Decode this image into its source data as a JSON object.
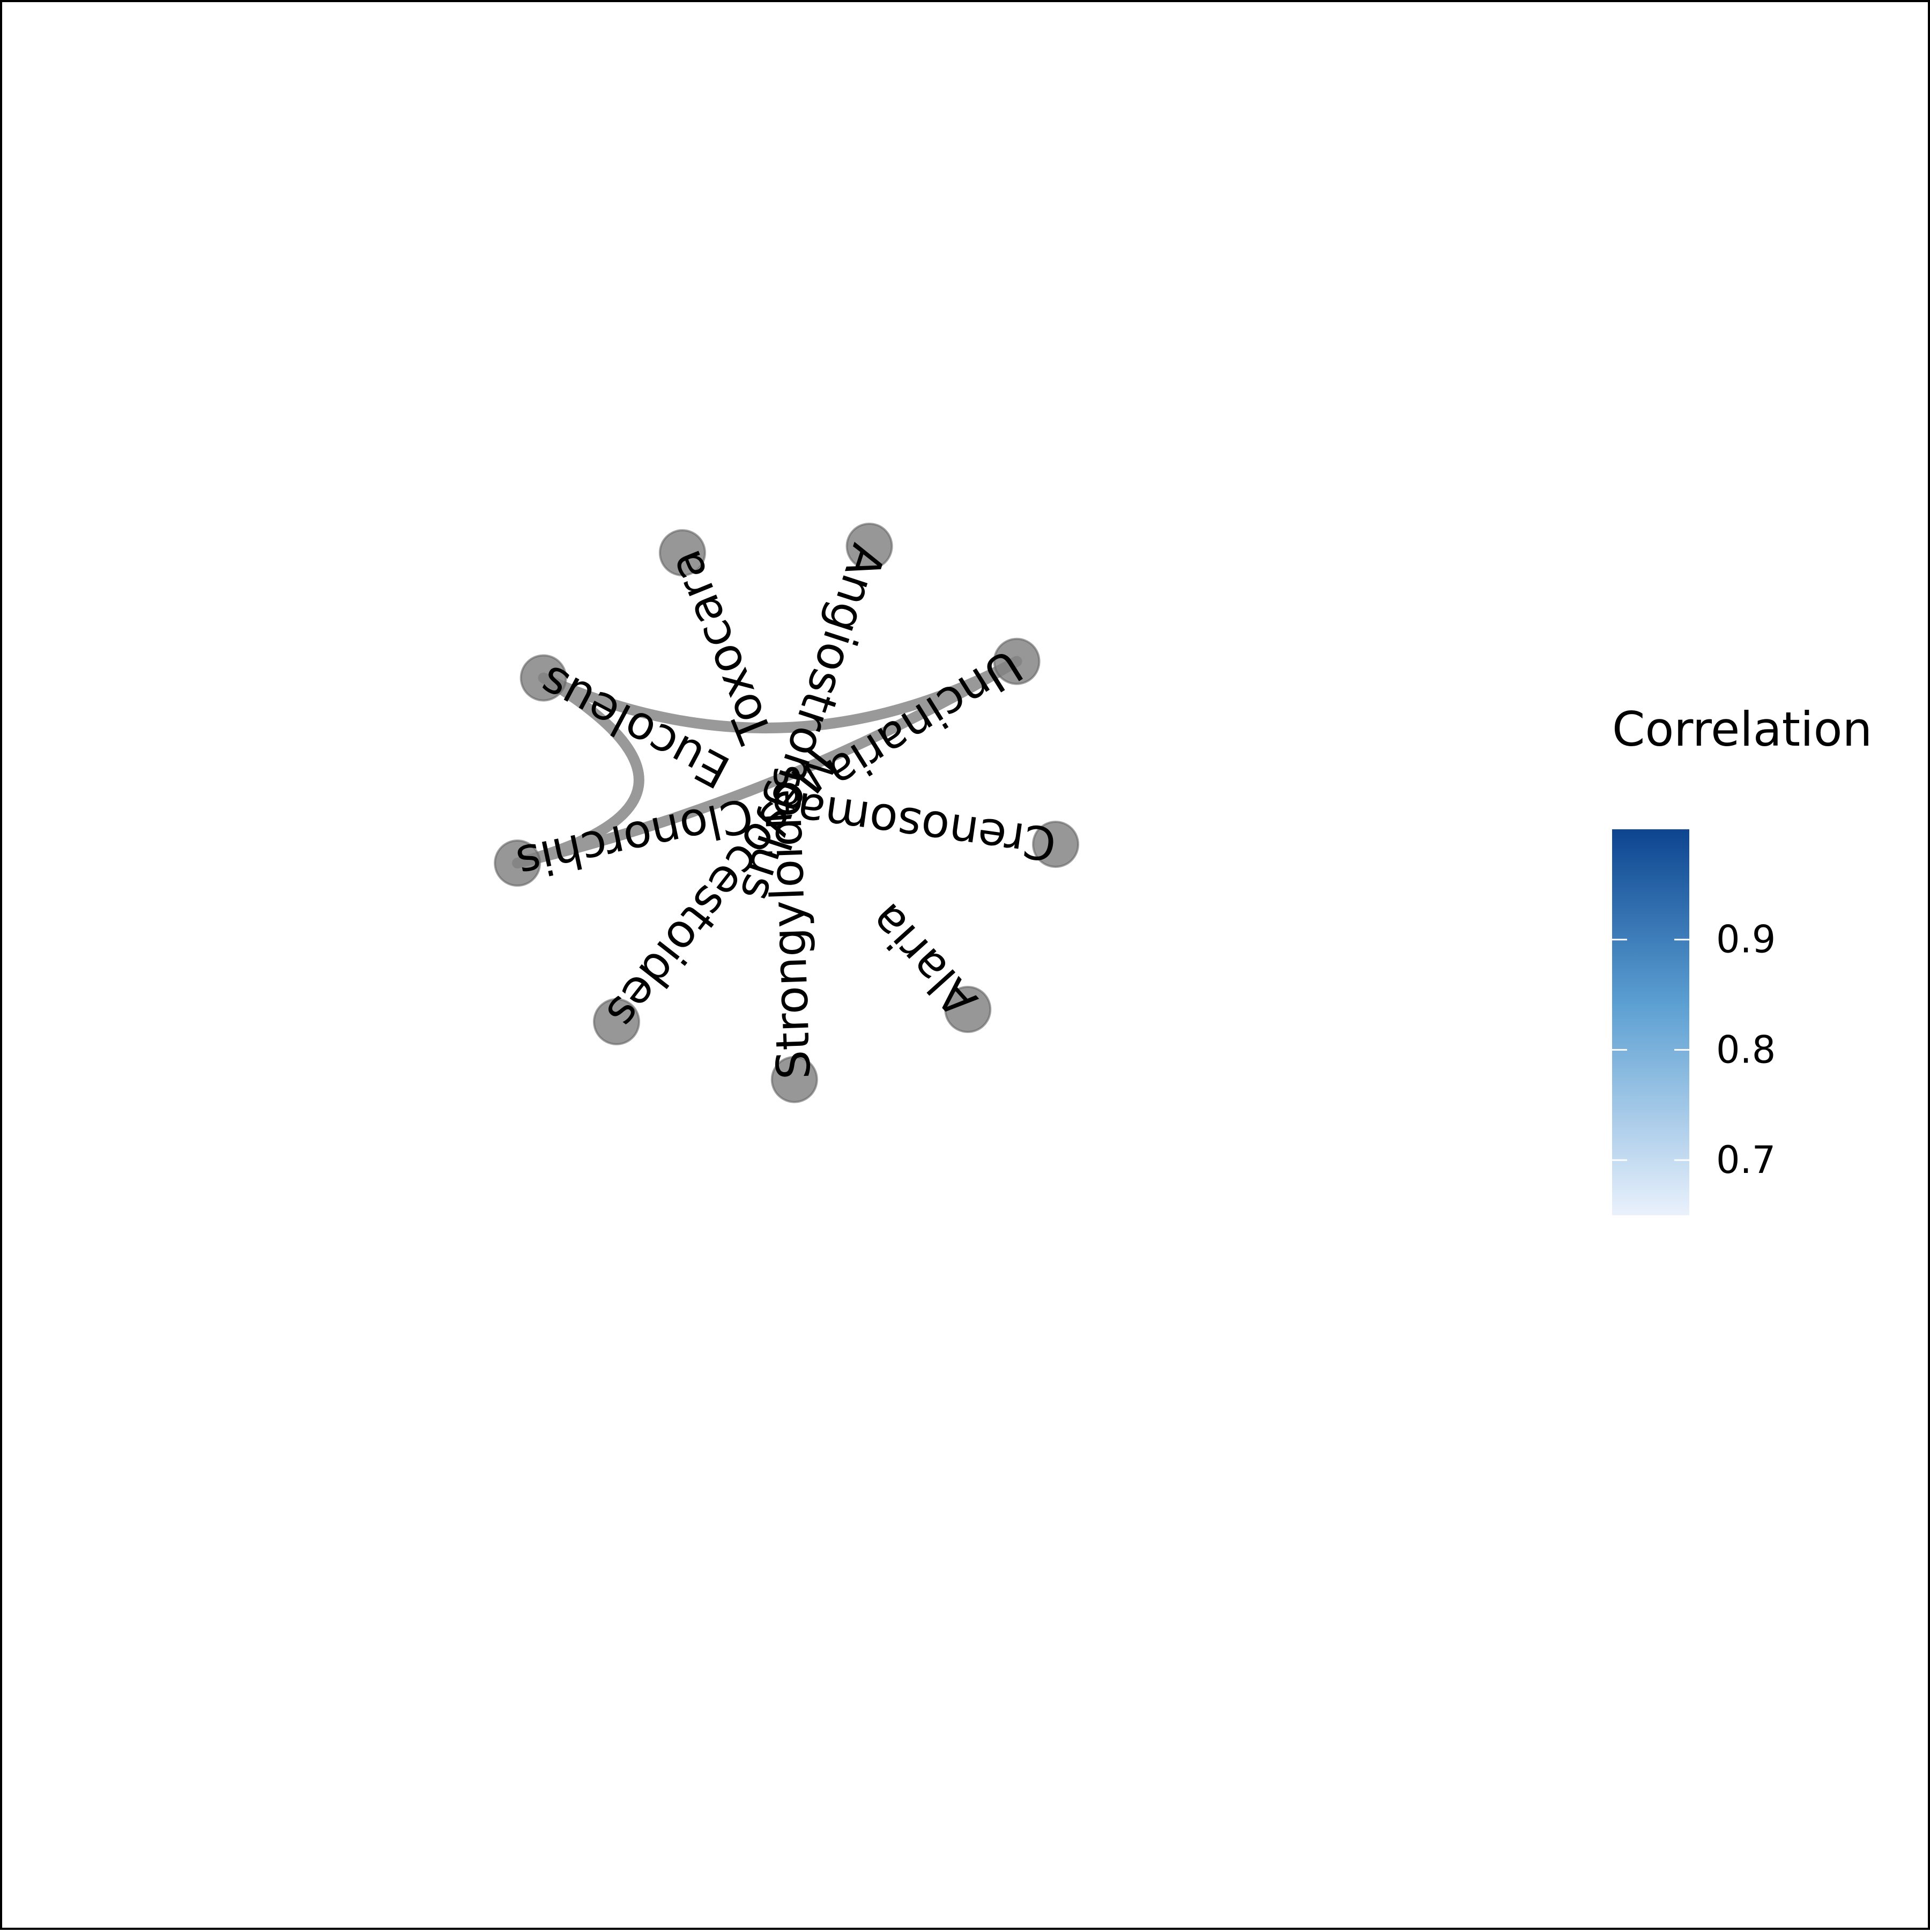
{
  "legend": {
    "title": "Correlation",
    "color_low": "#eaf1fc",
    "color_mid": "#5b9fd2",
    "color_high": "#0d4590",
    "range": [
      0.65,
      1.0
    ],
    "ticks": [
      {
        "value": 0.9,
        "label": "0.9"
      },
      {
        "value": 0.8,
        "label": "0.8"
      },
      {
        "value": 0.7,
        "label": "0.7"
      }
    ]
  },
  "style": {
    "node_color": "#808080",
    "edge_color": "#999999"
  },
  "nodes": [
    {
      "id": "toxocara",
      "label": "Toxocara"
    },
    {
      "id": "angiostrongylus",
      "label": "Angiostrongylus"
    },
    {
      "id": "uncinaria",
      "label": "Uncinaria"
    },
    {
      "id": "crenosoma",
      "label": "Crenosoma"
    },
    {
      "id": "alaria",
      "label": "Alaria"
    },
    {
      "id": "strongyloides",
      "label": "Strongyloides"
    },
    {
      "id": "mesocestoides",
      "label": "Mesocestoides"
    },
    {
      "id": "clonorchis",
      "label": "Clonorchis"
    },
    {
      "id": "eucoleus",
      "label": "Eucoleus"
    }
  ],
  "edges": [
    {
      "source": "eucoleus",
      "target": "uncinaria"
    },
    {
      "source": "eucoleus",
      "target": "clonorchis"
    },
    {
      "source": "clonorchis",
      "target": "uncinaria"
    }
  ]
}
